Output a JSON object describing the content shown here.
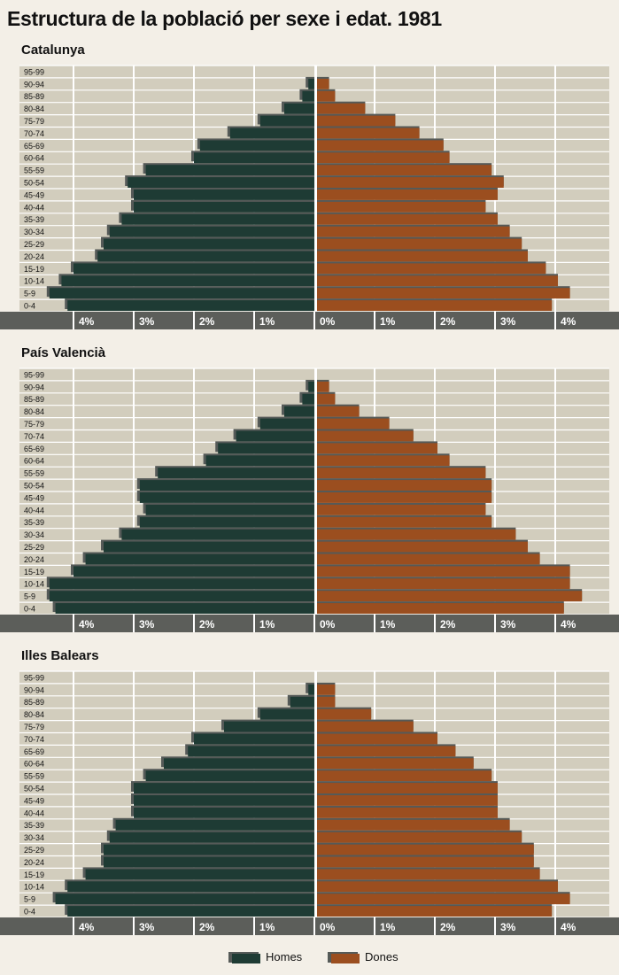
{
  "title": "Estructura  de la població per sexe i edat. 1981",
  "colors": {
    "background": "#f3efe7",
    "plot": "#d2cdbd",
    "grid": "#ffffff",
    "axis_band": "#5c5e5a",
    "homes": "#1e3b34",
    "dones": "#9b4e1f",
    "bar_shadow": "#555a58"
  },
  "age_groups": [
    "0-4",
    "5-9",
    "10-14",
    "15-19",
    "20-24",
    "25-29",
    "30-34",
    "35-39",
    "40-44",
    "45-49",
    "50-54",
    "55-59",
    "60-64",
    "65-69",
    "70-74",
    "75-79",
    "80-84",
    "85-89",
    "90-94",
    "95-99"
  ],
  "axis": {
    "left_ticks": [
      "4%",
      "3%",
      "2%",
      "1%"
    ],
    "right_ticks": [
      "0%",
      "1%",
      "2%",
      "3%",
      "4%"
    ]
  },
  "legend": {
    "homes": "Homes",
    "dones": "Dones"
  },
  "chart_data": [
    {
      "type": "bar",
      "title": "Catalunya",
      "categories": [
        "0-4",
        "5-9",
        "10-14",
        "15-19",
        "20-24",
        "25-29",
        "30-34",
        "35-39",
        "40-44",
        "45-49",
        "50-54",
        "55-59",
        "60-64",
        "65-69",
        "70-74",
        "75-79",
        "80-84",
        "85-89",
        "90-94",
        "95-99"
      ],
      "series": [
        {
          "name": "Homes",
          "values": [
            4.1,
            4.4,
            4.2,
            4.0,
            3.6,
            3.5,
            3.4,
            3.2,
            3.0,
            3.0,
            3.1,
            2.8,
            2.0,
            1.9,
            1.4,
            0.9,
            0.5,
            0.2,
            0.1,
            0.0
          ]
        },
        {
          "name": "Dones",
          "values": [
            3.9,
            4.2,
            4.0,
            3.8,
            3.5,
            3.4,
            3.2,
            3.0,
            2.8,
            3.0,
            3.1,
            2.9,
            2.2,
            2.1,
            1.7,
            1.3,
            0.8,
            0.3,
            0.2,
            0.0
          ]
        }
      ],
      "xlim": [
        -4.5,
        4.5
      ]
    },
    {
      "type": "bar",
      "title": "País Valencià",
      "categories": [
        "0-4",
        "5-9",
        "10-14",
        "15-19",
        "20-24",
        "25-29",
        "30-34",
        "35-39",
        "40-44",
        "45-49",
        "50-54",
        "55-59",
        "60-64",
        "65-69",
        "70-74",
        "75-79",
        "80-84",
        "85-89",
        "90-94",
        "95-99"
      ],
      "series": [
        {
          "name": "Homes",
          "values": [
            4.3,
            4.4,
            4.4,
            4.0,
            3.8,
            3.5,
            3.2,
            2.9,
            2.8,
            2.9,
            2.9,
            2.6,
            1.8,
            1.6,
            1.3,
            0.9,
            0.5,
            0.2,
            0.1,
            0.0
          ]
        },
        {
          "name": "Dones",
          "values": [
            4.1,
            4.4,
            4.2,
            4.2,
            3.7,
            3.5,
            3.3,
            2.9,
            2.8,
            2.9,
            2.9,
            2.8,
            2.2,
            2.0,
            1.6,
            1.2,
            0.7,
            0.3,
            0.2,
            0.0
          ]
        }
      ],
      "xlim": [
        -4.5,
        4.5
      ]
    },
    {
      "type": "bar",
      "title": "Illes Balears",
      "categories": [
        "0-4",
        "5-9",
        "10-14",
        "15-19",
        "20-24",
        "25-29",
        "30-34",
        "35-39",
        "40-44",
        "45-49",
        "50-54",
        "55-59",
        "60-64",
        "65-69",
        "70-74",
        "75-79",
        "80-84",
        "85-89",
        "90-94",
        "95-99"
      ],
      "series": [
        {
          "name": "Homes",
          "values": [
            4.1,
            4.3,
            4.1,
            3.8,
            3.5,
            3.5,
            3.4,
            3.3,
            3.0,
            3.0,
            3.0,
            2.8,
            2.5,
            2.1,
            2.0,
            1.5,
            0.9,
            0.4,
            0.1,
            0.0
          ]
        },
        {
          "name": "Dones",
          "values": [
            3.9,
            4.2,
            4.0,
            3.7,
            3.6,
            3.6,
            3.4,
            3.2,
            3.0,
            3.0,
            3.0,
            2.9,
            2.6,
            2.3,
            2.0,
            1.6,
            0.9,
            0.3,
            0.3,
            0.0
          ]
        }
      ],
      "xlim": [
        -4.5,
        4.5
      ]
    }
  ]
}
